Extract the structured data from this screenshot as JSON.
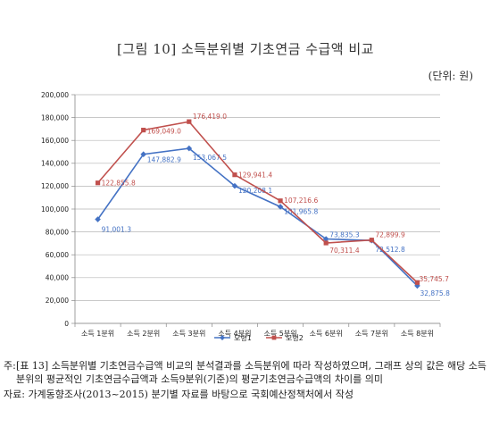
{
  "chart_data": {
    "type": "line",
    "title": "[그림 10] 소득분위별 기초연금 수급액 비교",
    "unit_label": "(단위: 원)",
    "categories": [
      "소득 1분위",
      "소득 2분위",
      "소득 3분위",
      "소득 4분위",
      "소득 5분위",
      "소득 6분위",
      "소득 7분위",
      "소득 8분위"
    ],
    "ylim": [
      0,
      200000
    ],
    "yticks": [
      0,
      20000,
      40000,
      60000,
      80000,
      100000,
      120000,
      140000,
      160000,
      180000,
      200000
    ],
    "ytick_labels": [
      "0",
      "20,000",
      "40,000",
      "60,000",
      "80,000",
      "100,000",
      "120,000",
      "140,000",
      "160,000",
      "180,000",
      "200,000"
    ],
    "legend_position": "bottom",
    "series": [
      {
        "name": "모형1",
        "color": "#4472c4",
        "marker": "diamond",
        "values": [
          91001.3,
          147882.9,
          153067.5,
          120208.1,
          101965.8,
          73835.3,
          72512.8,
          32875.8
        ],
        "labels": [
          "91,001.3",
          "147,882.9",
          "153,067.5",
          "120,208.1",
          "101,965.8",
          "73,835.3",
          "72,512.8",
          "32,875.8"
        ]
      },
      {
        "name": "모형2",
        "color": "#c0504d",
        "marker": "square",
        "values": [
          122855.8,
          169049.0,
          176419.0,
          129941.4,
          107216.6,
          70311.4,
          72899.9,
          35745.7
        ],
        "labels": [
          "122,855.8",
          "169,049.0",
          "176,419.0",
          "129,941.4",
          "107,216.6",
          "70,311.4",
          "72,899.9",
          "35,745.7"
        ]
      }
    ]
  },
  "notes": {
    "note_mark": "주:",
    "note_text": "[표 13] 소득분위별 기초연금수급액 비교의 분석결과를 소득분위에 따라 작성하였으며, 그래프 상의 값은 해당 소득분위의 평균적인 기초연금수급액과 소득9분위(기준)의 평균기초연금수급액의 차이를 의미",
    "source_text": "자료: 가계동향조사(2013~2015) 분기별 자료를 바탕으로 국회예산정책처에서 작성"
  }
}
